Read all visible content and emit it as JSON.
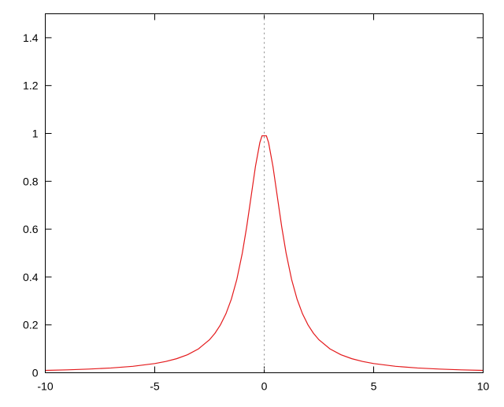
{
  "chart_data": {
    "type": "line",
    "title": "",
    "xlabel": "",
    "ylabel": "",
    "xlim": [
      -10,
      10
    ],
    "ylim": [
      0,
      1.5
    ],
    "grid": false,
    "legend": "none",
    "x_ticks": [
      "-10",
      "-5",
      "0",
      "5",
      "10"
    ],
    "x_tick_values": [
      -10,
      -5,
      0,
      5,
      10
    ],
    "y_ticks": [
      "0",
      "0.2",
      "0.4",
      "0.6",
      "0.8",
      "1",
      "1.2",
      "1.4"
    ],
    "y_tick_values": [
      0,
      0.2,
      0.4,
      0.6,
      0.8,
      1,
      1.2,
      1.4
    ],
    "vertical_reference_line": {
      "x": 0,
      "style": "dotted",
      "color": "#888888"
    },
    "series": [
      {
        "color": "#e41a1c",
        "x": [
          -10,
          -9,
          -8,
          -7,
          -6,
          -5,
          -4.5,
          -4,
          -3.5,
          -3,
          -2.5,
          -2.25,
          -2,
          -1.75,
          -1.5,
          -1.25,
          -1,
          -0.8,
          -0.6,
          -0.4,
          -0.2,
          -0.1,
          0.1,
          0.2,
          0.4,
          0.6,
          0.8,
          1,
          1.25,
          1.5,
          1.75,
          2,
          2.25,
          2.5,
          3,
          3.5,
          4,
          4.5,
          5,
          6,
          7,
          8,
          9,
          10
        ],
        "y": [
          0.0099,
          0.0122,
          0.0154,
          0.02,
          0.027,
          0.0385,
          0.0471,
          0.0588,
          0.0755,
          0.1,
          0.1379,
          0.1649,
          0.2,
          0.2462,
          0.3077,
          0.3902,
          0.5,
          0.6098,
          0.7353,
          0.8621,
          0.9615,
          0.9901,
          0.9901,
          0.9615,
          0.8621,
          0.7353,
          0.6098,
          0.5,
          0.3902,
          0.3077,
          0.2462,
          0.2,
          0.1649,
          0.1379,
          0.1,
          0.0755,
          0.0588,
          0.0471,
          0.0385,
          0.027,
          0.02,
          0.0154,
          0.0122,
          0.0099
        ]
      }
    ]
  }
}
